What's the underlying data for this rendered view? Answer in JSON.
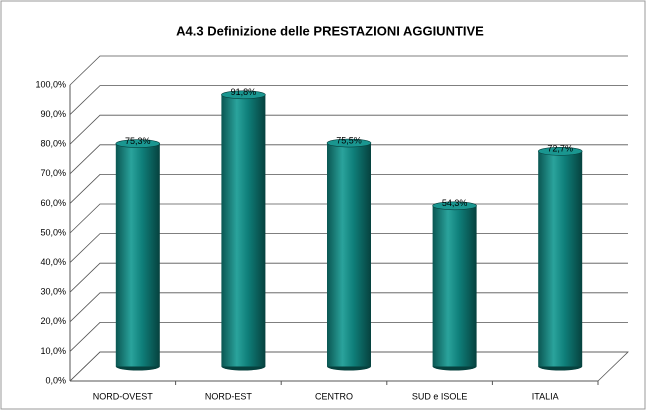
{
  "chart_data": {
    "type": "bar",
    "title": "A4.3 Definizione delle PRESTAZIONI AGGIUNTIVE",
    "categories": [
      "NORD-OVEST",
      "NORD-EST",
      "CENTRO",
      "SUD e ISOLE",
      "ITALIA"
    ],
    "values": [
      75.3,
      91.8,
      75.5,
      54.3,
      72.7
    ],
    "value_labels": [
      "75,3%",
      "91,8%",
      "75,5%",
      "54,3%",
      "72,7%"
    ],
    "color": "#0f7f7a",
    "ylim": [
      0,
      100
    ],
    "yticks": [
      {
        "value": 0,
        "label": "0,0%"
      },
      {
        "value": 10,
        "label": "10,0%"
      },
      {
        "value": 20,
        "label": "20,0%"
      },
      {
        "value": 30,
        "label": "30,0%"
      },
      {
        "value": 40,
        "label": "40,0%"
      },
      {
        "value": 50,
        "label": "50,0%"
      },
      {
        "value": 60,
        "label": "60,0%"
      },
      {
        "value": 70,
        "label": "70,0%"
      },
      {
        "value": 80,
        "label": "80,0%"
      },
      {
        "value": 90,
        "label": "90,0%"
      },
      {
        "value": 100,
        "label": "100,0%"
      }
    ],
    "grid": true
  }
}
